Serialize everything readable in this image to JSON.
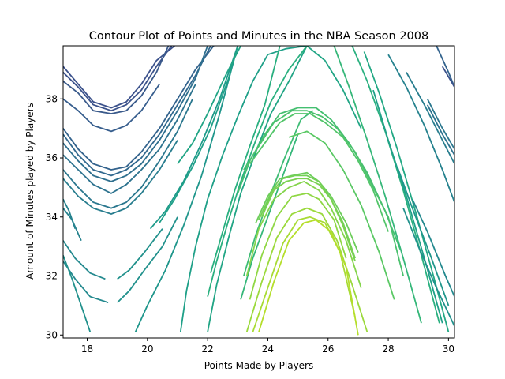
{
  "chart_data": {
    "type": "contour",
    "title": "Contour Plot of Points and Minutes in the NBA Season 2008",
    "xlabel": "Points Made by Players",
    "ylabel": "Amount of Minutes played by Players",
    "xlim": [
      17.2,
      30.2
    ],
    "ylim": [
      29.9,
      39.8
    ],
    "xticks": [
      18,
      20,
      22,
      24,
      26,
      28,
      30
    ],
    "yticks": [
      30,
      32,
      34,
      36,
      38
    ],
    "grid": false,
    "legend": "none",
    "colormap": "viridis",
    "series": [
      {
        "color": "#3b518b",
        "x": [
          17.2,
          17.7,
          18.2,
          18.8,
          19.3,
          19.8,
          20.3,
          20.9
        ],
        "y": [
          39.1,
          38.5,
          37.9,
          37.7,
          37.9,
          38.5,
          39.3,
          39.8
        ]
      },
      {
        "color": "#3b528b",
        "x": [
          17.2,
          17.7,
          18.2,
          18.8,
          19.3,
          19.8,
          20.3,
          20.8
        ],
        "y": [
          38.9,
          38.4,
          37.8,
          37.6,
          37.8,
          38.3,
          39.1,
          39.8
        ]
      },
      {
        "color": "#3a5a8b",
        "x": [
          17.2,
          17.7,
          18.2,
          18.8,
          19.3,
          19.8,
          20.3,
          20.7
        ],
        "y": [
          38.6,
          38.2,
          37.6,
          37.5,
          37.6,
          38.1,
          38.9,
          39.8
        ]
      },
      {
        "color": "#365d8d",
        "x": [
          17.2,
          17.7,
          18.2,
          18.8,
          19.3,
          19.8,
          20.4
        ],
        "y": [
          38.0,
          37.6,
          37.1,
          36.9,
          37.1,
          37.6,
          38.5
        ]
      },
      {
        "color": "#33638d",
        "x": [
          17.2,
          17.7,
          18.2,
          18.8,
          19.3,
          19.8,
          20.4,
          21.0,
          21.6,
          22.2
        ],
        "y": [
          37.0,
          36.3,
          35.8,
          35.6,
          35.7,
          36.2,
          37.0,
          38.0,
          39.0,
          39.8
        ]
      },
      {
        "color": "#31688e",
        "x": [
          17.2,
          17.7,
          18.2,
          18.8,
          19.3,
          19.8,
          20.4,
          21.0,
          21.6,
          22.1
        ],
        "y": [
          36.8,
          36.1,
          35.6,
          35.4,
          35.6,
          36.0,
          36.8,
          37.8,
          38.8,
          39.8
        ]
      },
      {
        "color": "#2e6f8e",
        "x": [
          17.2,
          17.7,
          18.2,
          18.8,
          19.3,
          19.8,
          20.4,
          21.0,
          21.6,
          22.0
        ],
        "y": [
          36.5,
          35.9,
          35.4,
          35.2,
          35.4,
          35.8,
          36.6,
          37.6,
          38.7,
          39.8
        ]
      },
      {
        "color": "#2c728e",
        "x": [
          17.2,
          17.7,
          18.2,
          18.8,
          19.3,
          19.8,
          20.4,
          21.0,
          21.6
        ],
        "y": [
          36.1,
          35.6,
          35.1,
          34.8,
          35.1,
          35.6,
          36.3,
          37.3,
          38.5
        ]
      },
      {
        "color": "#2a778e",
        "x": [
          17.2,
          17.7,
          18.2,
          18.8,
          19.3,
          19.8,
          20.4,
          21.0,
          21.5
        ],
        "y": [
          35.6,
          35.0,
          34.5,
          34.3,
          34.5,
          35.0,
          35.9,
          36.9,
          38.0
        ]
      },
      {
        "color": "#287d8e",
        "x": [
          17.2,
          17.7,
          18.2,
          18.8,
          19.3,
          19.8,
          20.4,
          21.0
        ],
        "y": [
          35.3,
          34.7,
          34.3,
          34.1,
          34.3,
          34.8,
          35.6,
          36.6
        ]
      },
      {
        "color": "#26828e",
        "x": [
          17.2,
          17.4,
          17.6
        ],
        "y": [
          34.6,
          34.2,
          33.6
        ]
      },
      {
        "color": "#26828e",
        "x": [
          17.2,
          17.5,
          17.8
        ],
        "y": [
          34.3,
          33.9,
          33.2
        ]
      },
      {
        "color": "#23898e",
        "x": [
          17.2,
          17.6,
          18.1,
          18.6
        ],
        "y": [
          33.2,
          32.6,
          32.1,
          31.9
        ]
      },
      {
        "color": "#23898e",
        "x": [
          17.2,
          17.6,
          18.1,
          18.7
        ],
        "y": [
          32.5,
          31.9,
          31.3,
          31.1
        ]
      },
      {
        "color": "#21918c",
        "x": [
          17.2,
          17.5,
          17.8,
          18.1
        ],
        "y": [
          32.7,
          31.9,
          31.0,
          30.1
        ]
      },
      {
        "color": "#21918c",
        "x": [
          19.0,
          19.4,
          19.9,
          20.5
        ],
        "y": [
          31.9,
          32.2,
          32.8,
          33.6
        ]
      },
      {
        "color": "#21918c",
        "x": [
          19.0,
          19.4,
          19.9,
          20.5,
          21.0
        ],
        "y": [
          31.1,
          31.5,
          32.2,
          33.0,
          34.0
        ]
      },
      {
        "color": "#1f968b",
        "x": [
          19.6,
          20.0,
          20.6,
          21.2,
          21.8,
          22.4,
          23.0
        ],
        "y": [
          30.1,
          31.0,
          32.2,
          33.7,
          35.4,
          37.5,
          39.8
        ]
      },
      {
        "color": "#1e9b8a",
        "x": [
          20.1,
          20.6,
          21.2,
          21.8,
          22.4,
          23.0
        ],
        "y": [
          33.6,
          34.2,
          35.2,
          36.5,
          38.0,
          39.8
        ]
      },
      {
        "color": "#1fa088",
        "x": [
          20.4,
          20.9,
          21.5,
          22.1,
          22.7,
          23.0
        ],
        "y": [
          33.8,
          34.6,
          35.7,
          37.0,
          38.7,
          39.8
        ]
      },
      {
        "color": "#21a585",
        "x": [
          21.0,
          21.5,
          22.0,
          22.6,
          23.1
        ],
        "y": [
          35.8,
          36.5,
          37.5,
          38.8,
          39.8
        ]
      },
      {
        "color": "#1fa088",
        "x": [
          21.1,
          21.3,
          21.6,
          22.0,
          22.5,
          23.0,
          23.5,
          24.0,
          24.6,
          25.3
        ],
        "y": [
          30.1,
          31.5,
          33.0,
          34.6,
          36.1,
          37.4,
          38.6,
          39.5,
          39.7,
          39.8
        ]
      },
      {
        "color": "#21a585",
        "x": [
          22.0,
          22.3,
          22.7,
          23.1,
          23.6,
          24.1,
          24.7,
          25.3,
          25.9,
          26.5,
          27.1
        ],
        "y": [
          30.1,
          31.7,
          33.3,
          34.8,
          36.2,
          37.5,
          38.6,
          39.8,
          39.3,
          38.3,
          37.0
        ]
      },
      {
        "color": "#2ab07f",
        "x": [
          22.0,
          22.3,
          22.7,
          23.1,
          23.6,
          24.1,
          24.7,
          25.3
        ],
        "y": [
          31.3,
          32.5,
          33.9,
          35.2,
          36.6,
          37.9,
          39.0,
          39.8
        ]
      },
      {
        "color": "#29af7f",
        "x": [
          22.1,
          22.5,
          22.9,
          23.4,
          23.9,
          24.4
        ],
        "y": [
          32.1,
          33.5,
          34.9,
          36.4,
          37.8,
          39.8
        ]
      },
      {
        "color": "#35b779",
        "x": [
          23.1,
          23.5,
          24.0,
          24.5,
          25.0
        ],
        "y": [
          31.2,
          32.6,
          34.0,
          35.4,
          36.8
        ]
      },
      {
        "color": "#3dbc74",
        "x": [
          23.2,
          23.6,
          24.1,
          24.6,
          25.1,
          25.5
        ],
        "y": [
          32.0,
          33.4,
          34.8,
          36.1,
          37.3,
          37.6
        ]
      },
      {
        "color": "#44bf70",
        "x": [
          23.0,
          23.4,
          23.9,
          24.4,
          25.0,
          25.6,
          26.1,
          26.7,
          27.3,
          27.9,
          28.4
        ],
        "y": [
          34.8,
          35.9,
          36.8,
          37.5,
          37.7,
          37.7,
          37.3,
          36.5,
          35.5,
          34.2,
          32.9
        ]
      },
      {
        "color": "#4ac16d",
        "x": [
          23.2,
          23.7,
          24.2,
          24.8,
          25.3,
          25.8,
          26.3,
          26.9,
          27.4,
          28.0,
          28.5
        ],
        "y": [
          35.6,
          36.4,
          37.2,
          37.6,
          37.6,
          37.4,
          37.0,
          36.2,
          35.2,
          34.0,
          32.0
        ]
      },
      {
        "color": "#52c569",
        "x": [
          23.4,
          23.9,
          24.4,
          24.9,
          25.4,
          25.9,
          26.5,
          27.0,
          27.5,
          28.0
        ],
        "y": [
          35.8,
          36.5,
          37.2,
          37.5,
          37.5,
          37.2,
          36.7,
          35.9,
          34.9,
          33.5
        ]
      },
      {
        "color": "#5ac864",
        "x": [
          24.7,
          25.3,
          25.9,
          26.5,
          27.1,
          27.7,
          28.2
        ],
        "y": [
          36.7,
          36.9,
          36.5,
          35.6,
          34.4,
          32.8,
          31.2
        ]
      },
      {
        "color": "#35b779",
        "x": [
          26.2,
          26.7,
          27.3,
          27.9,
          28.5,
          29.1
        ],
        "y": [
          39.8,
          38.4,
          36.6,
          34.7,
          32.6,
          30.4
        ]
      },
      {
        "color": "#2ab07f",
        "x": [
          26.8,
          27.3,
          27.9,
          28.5,
          29.1,
          29.7
        ],
        "y": [
          39.8,
          38.6,
          36.9,
          34.9,
          32.7,
          30.4
        ]
      },
      {
        "color": "#22a884",
        "x": [
          27.2,
          27.7,
          28.3,
          28.9,
          29.5,
          30.0
        ],
        "y": [
          39.6,
          38.2,
          36.3,
          34.2,
          32.0,
          30.1
        ]
      },
      {
        "color": "#1fa088",
        "x": [
          27.5,
          28.0,
          28.6,
          29.2,
          29.8
        ],
        "y": [
          38.3,
          36.6,
          34.7,
          32.6,
          30.4
        ]
      },
      {
        "color": "#1f968b",
        "x": [
          28.3,
          28.8,
          29.4,
          30.0
        ],
        "y": [
          35.7,
          34.3,
          32.7,
          31.0
        ]
      },
      {
        "color": "#21918c",
        "x": [
          28.5,
          29.0,
          29.6,
          30.2
        ],
        "y": [
          34.3,
          33.0,
          31.6,
          30.3
        ]
      },
      {
        "color": "#23898e",
        "x": [
          28.8,
          29.3,
          29.9,
          30.2
        ],
        "y": [
          34.6,
          33.5,
          32.0,
          31.3
        ]
      },
      {
        "color": "#26828e",
        "x": [
          28.0,
          28.6,
          29.2,
          29.8,
          30.2
        ],
        "y": [
          39.5,
          38.4,
          37.1,
          35.6,
          34.5
        ]
      },
      {
        "color": "#287d8e",
        "x": [
          28.6,
          29.2,
          29.8,
          30.2
        ],
        "y": [
          38.9,
          37.8,
          36.6,
          35.8
        ]
      },
      {
        "color": "#2a778e",
        "x": [
          29.3,
          29.8,
          30.2
        ],
        "y": [
          38.0,
          37.0,
          36.3
        ]
      },
      {
        "color": "#2c728e",
        "x": [
          29.3,
          29.8,
          30.2
        ],
        "y": [
          37.8,
          36.8,
          36.1
        ]
      },
      {
        "color": "#33638d",
        "x": [
          29.6,
          30.0,
          30.2
        ],
        "y": [
          39.8,
          38.9,
          38.4
        ]
      },
      {
        "color": "#3b528b",
        "x": [
          29.8,
          30.2
        ],
        "y": [
          39.1,
          38.4
        ]
      },
      {
        "color": "#6ccd5a",
        "x": [
          23.6,
          24.0,
          24.4,
          24.8,
          25.3,
          25.7,
          26.1,
          26.6,
          27.0
        ],
        "y": [
          33.8,
          34.7,
          35.3,
          35.4,
          35.5,
          35.2,
          34.7,
          33.8,
          32.8
        ]
      },
      {
        "color": "#73d056",
        "x": [
          23.7,
          24.1,
          24.5,
          24.9,
          25.3,
          25.7,
          26.1,
          26.5,
          26.9
        ],
        "y": [
          33.9,
          34.8,
          35.3,
          35.4,
          35.4,
          35.2,
          34.6,
          33.8,
          32.6
        ]
      },
      {
        "color": "#7ad151",
        "x": [
          23.8,
          24.2,
          24.6,
          25.0,
          25.3,
          25.7,
          26.1,
          26.5,
          26.9
        ],
        "y": [
          34.0,
          34.9,
          35.2,
          35.3,
          35.3,
          35.1,
          34.6,
          33.7,
          32.5
        ]
      },
      {
        "color": "#84d44b",
        "x": [
          23.3,
          23.7,
          24.2,
          24.7,
          25.2,
          25.7,
          26.1,
          26.6,
          27.1
        ],
        "y": [
          32.0,
          33.6,
          34.6,
          35.0,
          35.2,
          34.9,
          34.3,
          33.2,
          31.6
        ]
      },
      {
        "color": "#8fd744",
        "x": [
          23.4,
          23.8,
          24.3,
          24.8,
          25.3,
          25.7,
          26.2,
          26.6
        ],
        "y": [
          31.2,
          32.7,
          34.0,
          34.7,
          34.8,
          34.6,
          33.9,
          32.6
        ]
      },
      {
        "color": "#9bd93c",
        "x": [
          23.3,
          23.8,
          24.3,
          24.8,
          25.3,
          25.8,
          26.3,
          26.8,
          27.3
        ],
        "y": [
          30.1,
          31.8,
          33.3,
          34.1,
          34.3,
          34.1,
          33.2,
          31.7,
          30.1
        ]
      },
      {
        "color": "#a8db34",
        "x": [
          23.5,
          24.0,
          24.5,
          25.0,
          25.4,
          25.9,
          26.4,
          26.9
        ],
        "y": [
          30.1,
          31.6,
          33.1,
          33.9,
          34.0,
          33.8,
          32.8,
          30.6
        ]
      },
      {
        "color": "#b5de2b",
        "x": [
          23.7,
          24.2,
          24.7,
          25.2,
          25.6,
          26.1,
          26.6,
          27.0
        ],
        "y": [
          30.1,
          31.8,
          33.2,
          33.8,
          33.9,
          33.5,
          32.3,
          30.0
        ]
      }
    ]
  }
}
